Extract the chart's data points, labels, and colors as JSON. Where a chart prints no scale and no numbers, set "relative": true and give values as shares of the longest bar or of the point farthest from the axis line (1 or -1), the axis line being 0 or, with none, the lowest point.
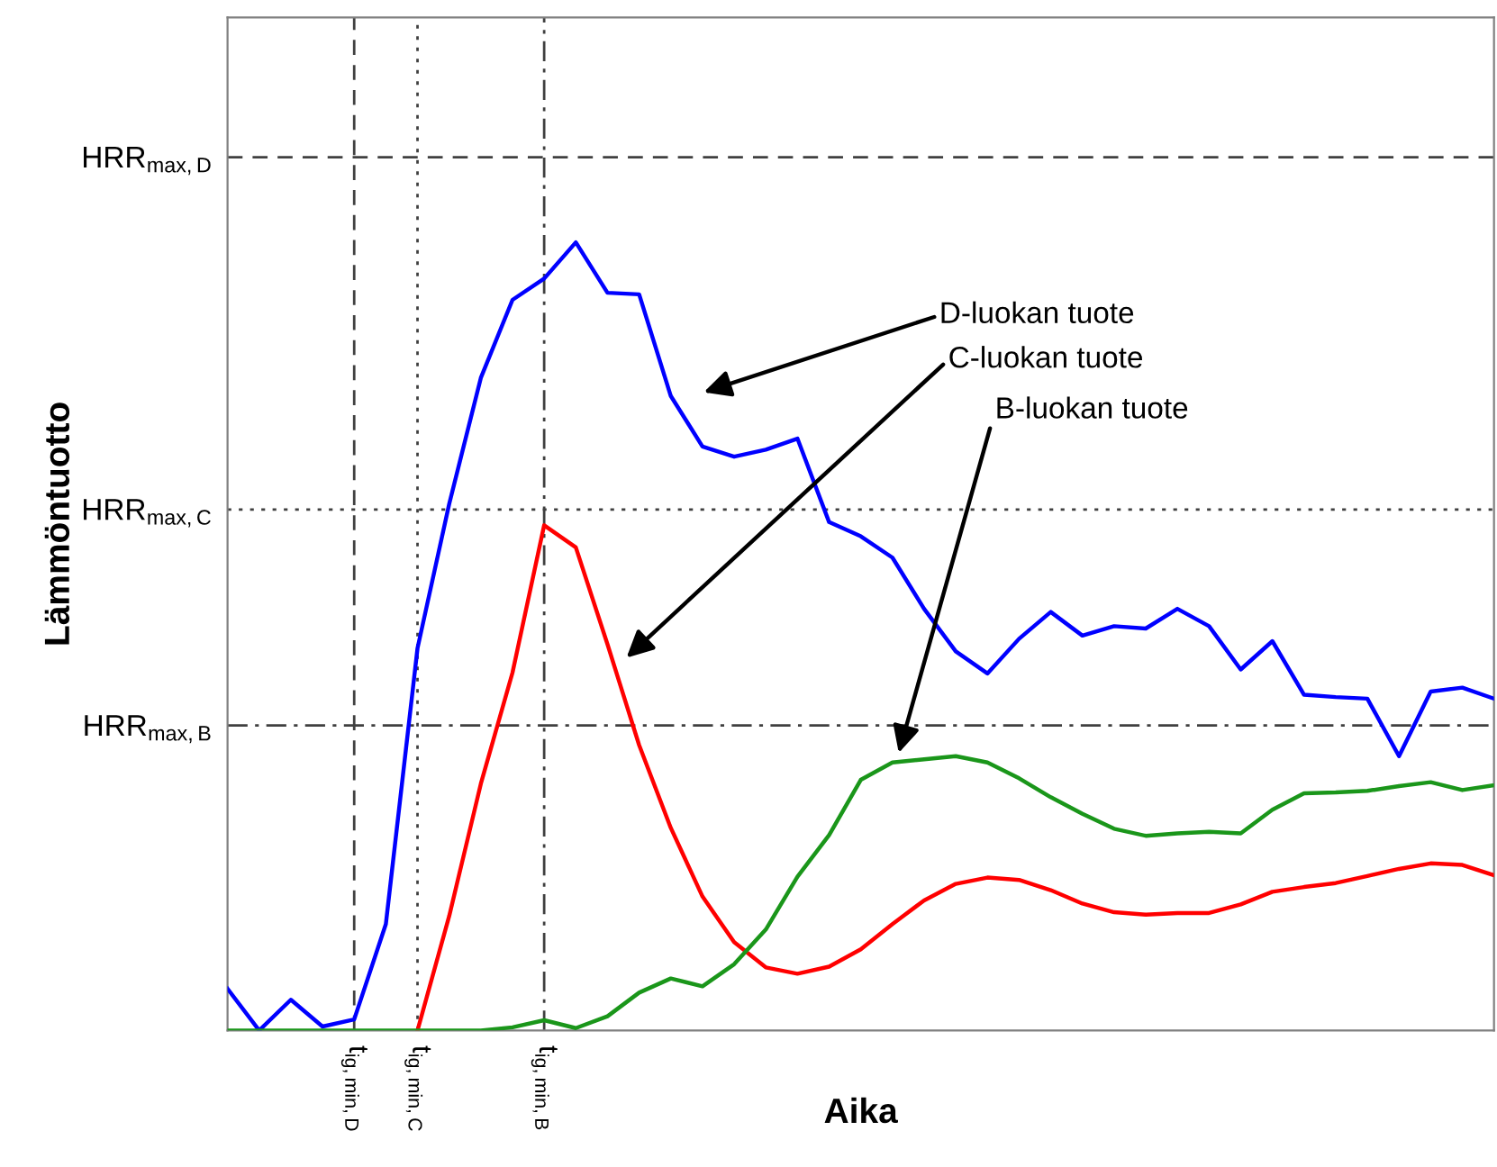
{
  "chart_data": {
    "type": "line",
    "relative": true,
    "xlabel": "Aika",
    "ylabel": "Lämmöntuotto",
    "grid": false,
    "legend": false,
    "marker": "none",
    "line_style": "solid",
    "categories": [
      null,
      null,
      null,
      null,
      "t$_{ig,min,D}$",
      null,
      "t$_{ig,min,C}$",
      null,
      null,
      null,
      "t$_{ig,min,B}$",
      null,
      null,
      null,
      null,
      null,
      null,
      null,
      null,
      null,
      null,
      null,
      null,
      null,
      null,
      null,
      null,
      null,
      null,
      null,
      null,
      null,
      null,
      null,
      null,
      null,
      null,
      null,
      null,
      null,
      null
    ],
    "series": [
      {
        "color": "#0000ff",
        "values": [
          0.053,
          0,
          0.039,
          0.005,
          0.014,
          0.135,
          0.485,
          0.668,
          0.828,
          0.927,
          0.954,
          1,
          0.936,
          0.934,
          0.805,
          0.741,
          0.728,
          0.737,
          0.751,
          0.645,
          0.627,
          0.6,
          0.535,
          0.481,
          0.453,
          0.497,
          0.531,
          0.501,
          0.513,
          0.51,
          0.535,
          0.513,
          0.458,
          0.494,
          0.426,
          0.423,
          0.421,
          0.348,
          0.43,
          0.435,
          0.421
        ]
      },
      {
        "color": "#ff0000",
        "values": [
          null,
          null,
          null,
          null,
          null,
          null,
          0,
          0.145,
          0.313,
          0.454,
          0.641,
          0.613,
          0.49,
          0.362,
          0.257,
          0.17,
          0.112,
          0.08,
          0.072,
          0.081,
          0.103,
          0.135,
          0.165,
          0.186,
          0.194,
          0.191,
          0.178,
          0.161,
          0.15,
          0.147,
          0.149,
          0.149,
          0.16,
          0.176,
          0.182,
          0.187,
          0.196,
          0.205,
          0.212,
          0.21,
          0.197
        ]
      },
      {
        "color": "#1a961a",
        "values": [
          0,
          0,
          0,
          0,
          0,
          0,
          0,
          0,
          0,
          0.004,
          0.013,
          0.003,
          0.018,
          0.048,
          0.066,
          0.056,
          0.084,
          0.128,
          0.195,
          0.248,
          0.318,
          0.34,
          0.344,
          0.348,
          0.34,
          0.32,
          0.296,
          0.275,
          0.256,
          0.247,
          0.25,
          0.252,
          0.25,
          0.28,
          0.301,
          0.302,
          0.304,
          0.31,
          0.315,
          0.305,
          0.311
        ]
      }
    ],
    "ref_lines": [
      {
        "axis": "y",
        "value": 1.108,
        "label": "HRR$_{max,D}$",
        "line_style": "dashed",
        "color": "#404040"
      },
      {
        "axis": "y",
        "value": 0.661,
        "label": "HRR$_{max,C}$",
        "line_style": "dotted",
        "color": "#404040"
      },
      {
        "axis": "y",
        "value": 0.387,
        "label": "HRR$_{max,B}$",
        "line_style": "dashdot",
        "color": "#404040"
      },
      {
        "axis": "x",
        "value": "t$_{ig,min,D}$",
        "line_style": "dashed",
        "color": "#404040"
      },
      {
        "axis": "x",
        "value": "t$_{ig,min,C}$",
        "line_style": "dotted",
        "color": "#404040"
      },
      {
        "axis": "x",
        "value": "t$_{ig,min,B}$",
        "line_style": "dashdot",
        "color": "#404040"
      }
    ],
    "annotations": [
      "D-luokan tuote",
      "C-luokan tuote",
      "B-luokan tuote"
    ]
  }
}
